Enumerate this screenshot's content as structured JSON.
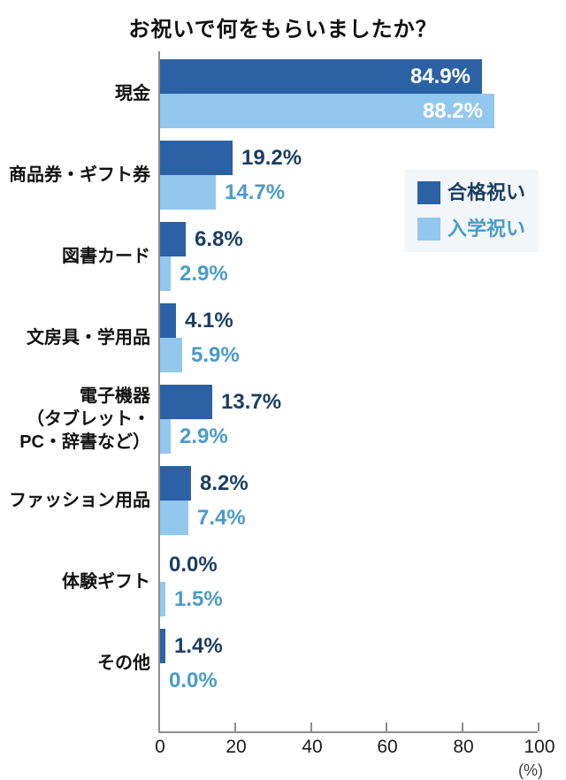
{
  "title": "お祝いで何をもらいましたか？",
  "legend": {
    "items": [
      {
        "label": "合格祝い",
        "swatch_color": "#2b61a5",
        "label_color": "#1d3e63"
      },
      {
        "label": "入学祝い",
        "swatch_color": "#93c8ee",
        "label_color": "#4a9bc9"
      }
    ]
  },
  "x_axis": {
    "tick_labels": [
      "0",
      "20",
      "40",
      "60",
      "80",
      "100"
    ],
    "tick_values": [
      0,
      20,
      40,
      60,
      80,
      100
    ],
    "unit_label": "(%)",
    "min": 0,
    "max": 100
  },
  "chart_data": {
    "type": "bar",
    "orientation": "horizontal",
    "title": "お祝いで何をもらいましたか？",
    "categories": [
      "現金",
      "商品券・ギフト券",
      "図書カード",
      "文房具・学用品",
      "電子機器\n（タブレット・\nPC・辞書など）",
      "ファッション用品",
      "体験ギフト",
      "その他"
    ],
    "series": [
      {
        "name": "合格祝い",
        "color": "#2b61a5",
        "value_label_color": "#1d3e63",
        "values": [
          84.9,
          19.2,
          6.8,
          4.1,
          13.7,
          8.2,
          0.0,
          1.4
        ]
      },
      {
        "name": "入学祝い",
        "color": "#93c8ee",
        "value_label_color": "#4a9bc9",
        "values": [
          88.2,
          14.7,
          2.9,
          5.9,
          2.9,
          7.4,
          1.5,
          0.0
        ]
      }
    ],
    "xlim": [
      0,
      100
    ],
    "x_ticks": [
      0,
      20,
      40,
      60,
      80,
      100
    ],
    "x_unit_label": "(%)",
    "value_suffix": "%",
    "value_decimals": 1,
    "grid": false,
    "legend_position": "right-upper",
    "inside_label_threshold": 50
  },
  "colors": {
    "background": "#ffffff",
    "axis": "#8c8c8c",
    "text": "#111111",
    "legend_background": "#f3f6f8"
  }
}
